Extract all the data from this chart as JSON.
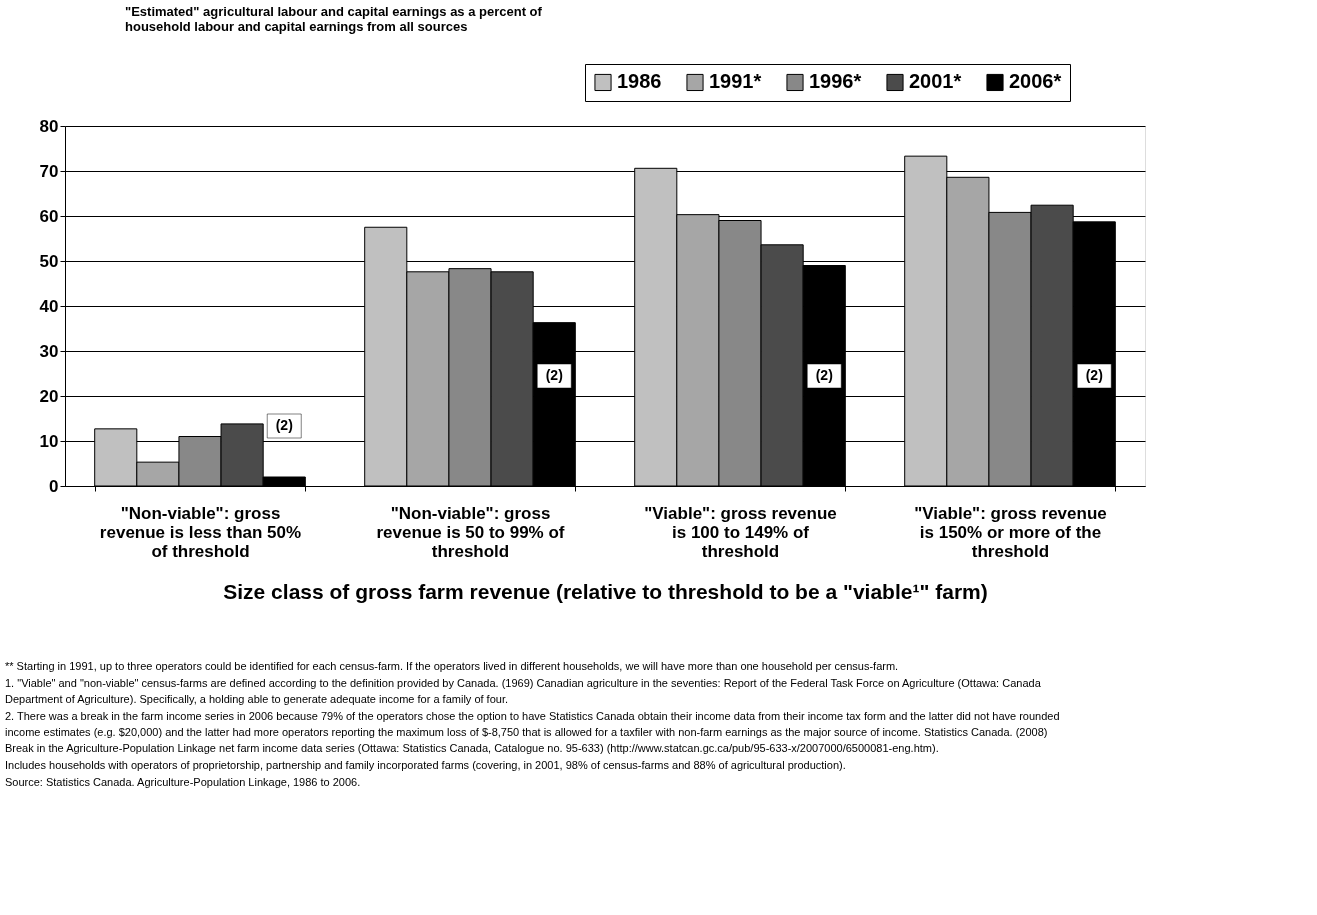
{
  "chart_data": {
    "type": "bar",
    "title": "\"Estimated\" agricultural labour and capital earnings as a percent of household labour and capital earnings from all sources",
    "xlabel": "Size class of gross farm revenue (relative to threshold to be a \"viable¹\" farm)",
    "categories": [
      "\"Non-viable\": gross revenue is less than 50% of threshold",
      "\"Non-viable\": gross revenue is 50 to 99% of threshold",
      "\"Viable\": gross revenue is 100 to 149% of threshold",
      "\"Viable\": gross revenue is 150% or more of the threshold"
    ],
    "series": [
      {
        "name": "1986",
        "color": "#c0c0c0",
        "values": [
          12.7,
          57.5,
          70.6,
          73.3
        ]
      },
      {
        "name": "1991*",
        "color": "#a6a6a6",
        "values": [
          5.3,
          47.6,
          60.3,
          68.6
        ]
      },
      {
        "name": "1996*",
        "color": "#888888",
        "values": [
          11.0,
          48.3,
          59.0,
          60.8
        ]
      },
      {
        "name": "2001*",
        "color": "#4b4b4b",
        "values": [
          13.8,
          47.6,
          53.6,
          62.4
        ]
      },
      {
        "name": "2006*",
        "color": "#000000",
        "values": [
          2.0,
          36.3,
          49.0,
          58.7
        ]
      }
    ],
    "ylim": [
      0,
      80
    ],
    "yticks": [
      0,
      10,
      20,
      30,
      40,
      50,
      60,
      70,
      80
    ],
    "grid": "y",
    "legend": "top right",
    "annotations": [
      "(2)",
      "(2)",
      "(2)",
      "(2)",
      "** Starting in 1991, up to three operators could be identified for each census-farm.  If the operators lived in different households, we will have more than one household per census-farm.",
      "1.  \"Viable\" and \"non-viable\" census-farms are defined according to the definition provided by Canada. (1969) Canadian agriculture in the seventies: Report of the Federal Task Force on Agriculture (Ottawa: Canada Department of Agriculture).  Specifically, a holding able to generate adequate income for a family of four.",
      "2.  There was a break in the farm income series in 2006 because 79% of the operators chose the option to have Statistics Canada obtain their income data from their income tax form and the latter did not have rounded income estimates (e.g. $20,000) and the latter had more operators reporting the maximum loss of $-8,750 that is allowed for a taxfiler with non-farm earnings as the major source of income. Statistics Canada. (2008) Break in the Agriculture-Population Linkage net farm income data series (Ottawa: Statistics Canada, Catalogue no. 95-633) (http://www.statcan.gc.ca/pub/95-633-x/2007000/6500081-eng.htm).",
      "Includes households with operators of proprietorship, partnership and family incorporated farms (covering, in 2001, 98% of census-farms and 88% of agricultural production).",
      "Source: Statistics Canada. Agriculture-Population Linkage, 1986 to 2006."
    ]
  }
}
